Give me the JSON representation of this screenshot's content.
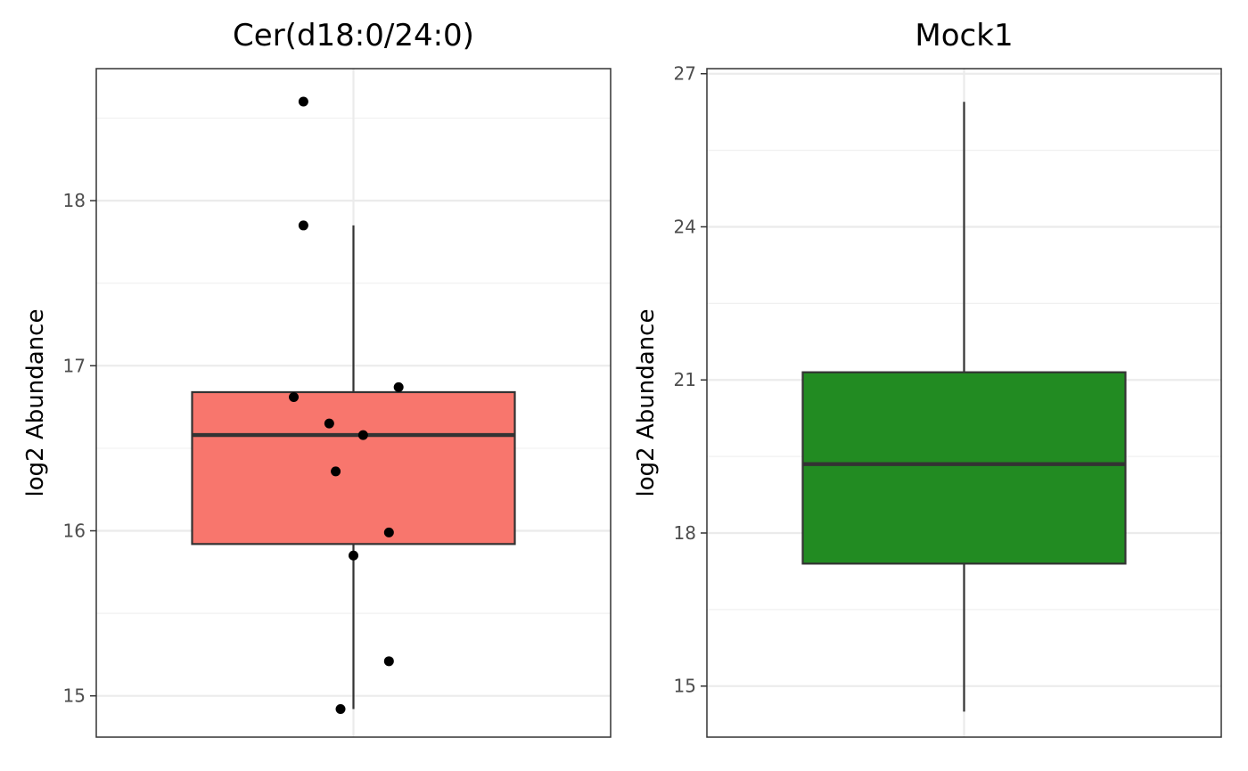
{
  "chart_data": [
    {
      "type": "box",
      "title": "Cer(d18:0/24:0)",
      "ylabel": "log2 Abundance",
      "ylim": [
        14.75,
        18.8
      ],
      "yticks": [
        15,
        16,
        17,
        18
      ],
      "grid": true,
      "box": {
        "min": 14.92,
        "q1": 15.92,
        "median": 16.58,
        "q3": 16.84,
        "max": 17.85,
        "fill": "#f8766d"
      },
      "points": [
        {
          "x": -0.31,
          "y": 18.6
        },
        {
          "x": -0.31,
          "y": 17.85
        },
        {
          "x": -0.37,
          "y": 16.81
        },
        {
          "x": 0.28,
          "y": 16.87
        },
        {
          "x": -0.15,
          "y": 16.65
        },
        {
          "x": 0.06,
          "y": 16.58
        },
        {
          "x": -0.11,
          "y": 16.36
        },
        {
          "x": 0.22,
          "y": 15.99
        },
        {
          "x": 0.0,
          "y": 15.85
        },
        {
          "x": 0.22,
          "y": 15.21
        },
        {
          "x": -0.08,
          "y": 14.92
        }
      ]
    },
    {
      "type": "box",
      "title": "Mock1",
      "ylabel": "log2 Abundance",
      "ylim": [
        14.0,
        27.1
      ],
      "yticks": [
        15,
        18,
        21,
        24,
        27
      ],
      "grid": true,
      "box": {
        "min": 14.5,
        "q1": 17.4,
        "median": 19.35,
        "q3": 21.15,
        "max": 26.45,
        "fill": "#228b22"
      },
      "points": []
    }
  ]
}
